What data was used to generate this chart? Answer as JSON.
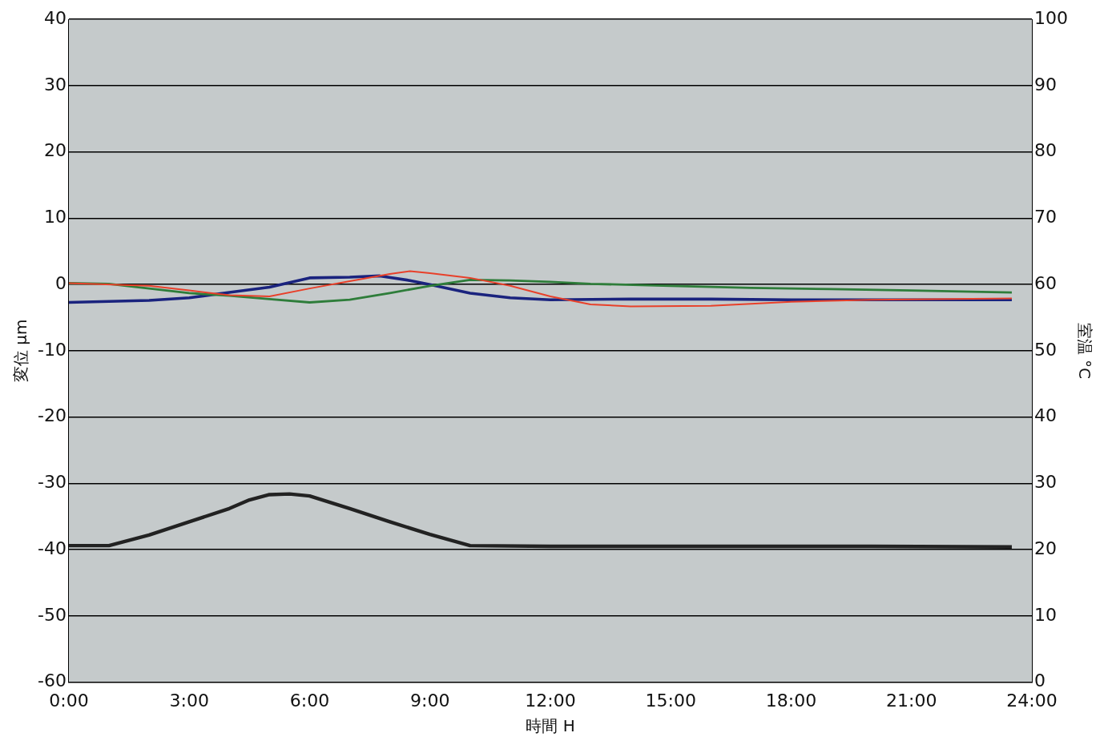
{
  "chart_data": {
    "type": "line",
    "xlabel": "時間 H",
    "ylabel": "変位 μm",
    "y2label": "室温 °C",
    "xlim": [
      0,
      24
    ],
    "xticks": [
      {
        "value": 0,
        "label": "0:00"
      },
      {
        "value": 3,
        "label": "3:00"
      },
      {
        "value": 6,
        "label": "6:00"
      },
      {
        "value": 9,
        "label": "9:00"
      },
      {
        "value": 12,
        "label": "12:00"
      },
      {
        "value": 15,
        "label": "15:00"
      },
      {
        "value": 18,
        "label": "18:00"
      },
      {
        "value": 21,
        "label": "21:00"
      },
      {
        "value": 24,
        "label": "24:00"
      }
    ],
    "ylim": [
      -60,
      40
    ],
    "yticks": [
      -60,
      -50,
      -40,
      -30,
      -20,
      -10,
      0,
      10,
      20,
      30,
      40
    ],
    "y2lim": [
      0,
      100
    ],
    "y2ticks": [
      0,
      10,
      20,
      30,
      40,
      50,
      60,
      70,
      80,
      90,
      100
    ],
    "grid": "y",
    "legend": false,
    "marker": "none",
    "line_style": "solid",
    "series": [
      {
        "color": "#e8402a",
        "x": [
          0,
          2,
          3,
          4,
          5,
          6,
          7,
          8,
          8.5,
          9,
          10,
          11,
          12,
          13,
          14,
          16,
          18,
          20,
          22,
          23.5
        ],
        "values": [
          0.2,
          -0.2,
          -0.9,
          -1.6,
          -1.8,
          -0.6,
          0.5,
          1.6,
          2,
          1.7,
          1,
          -0.2,
          -1.8,
          -3,
          -3.3,
          -3.2,
          -2.6,
          -2.3,
          -2.2,
          -2.1
        ]
      },
      {
        "color": "#2e7d3a",
        "x": [
          0,
          1,
          2,
          3,
          4,
          5,
          6,
          7,
          8,
          9,
          10,
          11,
          12,
          13,
          15,
          17,
          19,
          21,
          23.5
        ],
        "values": [
          0.2,
          0.1,
          -0.6,
          -1.3,
          -1.7,
          -2.2,
          -2.7,
          -2.3,
          -1.3,
          -0.2,
          0.7,
          0.6,
          0.4,
          0.1,
          -0.2,
          -0.5,
          -0.7,
          -0.9,
          -1.2
        ]
      },
      {
        "color": "#1a237e",
        "x": [
          0,
          2,
          3,
          4,
          5,
          6,
          7,
          7.75,
          8.5,
          9,
          10,
          11,
          12,
          14,
          16,
          18,
          20,
          23.5
        ],
        "values": [
          -2.7,
          -2.4,
          -2,
          -1.2,
          -0.4,
          1,
          1.1,
          1.3,
          0.6,
          0,
          -1.3,
          -2,
          -2.3,
          -2.2,
          -2.2,
          -2.3,
          -2.3,
          -2.3
        ]
      },
      {
        "color": "#222222",
        "axis": "y2",
        "x": [
          0,
          1,
          2,
          3,
          4,
          4.5,
          5,
          5.5,
          6,
          7,
          8,
          9,
          10,
          12,
          16,
          20,
          23.5
        ],
        "values": [
          20.6,
          20.6,
          22.2,
          24.2,
          26.2,
          27.5,
          28.3,
          28.4,
          28.1,
          26.2,
          24.2,
          22.3,
          20.6,
          20.5,
          20.5,
          20.5,
          20.4
        ]
      }
    ]
  }
}
